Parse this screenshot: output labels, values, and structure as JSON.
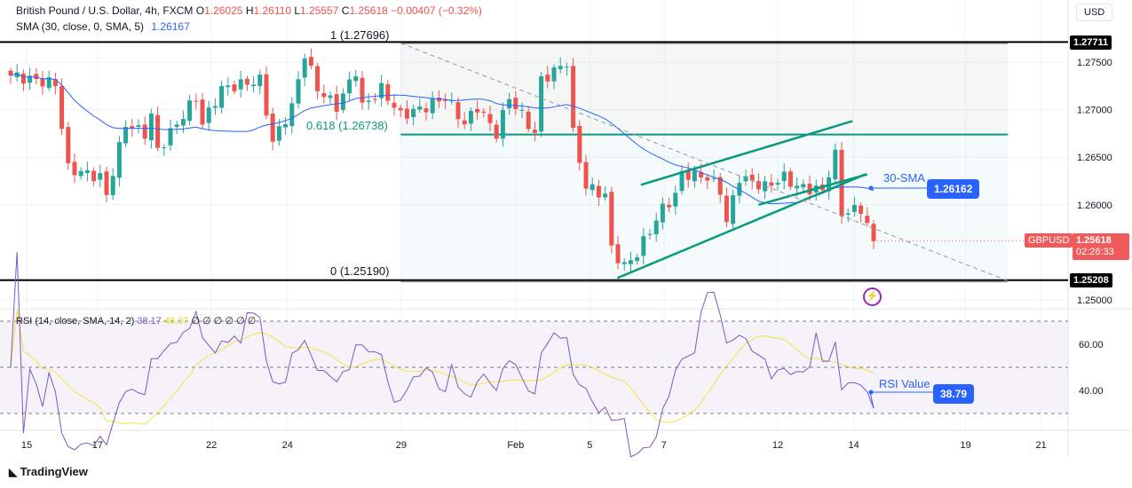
{
  "header": {
    "symbol": "British Pound / U.S. Dollar, 4h, FXCM",
    "o_label": "O",
    "o": "1.26025",
    "h_label": "H",
    "h": "1.26110",
    "l_label": "L",
    "l": "1.25557",
    "c_label": "C",
    "c": "1.25618",
    "change": "−0.00407 (−0.32%)"
  },
  "sma_legend": {
    "label": "SMA (30, close, 0, SMA, 5)",
    "value": "1.26167"
  },
  "rsi_legend": {
    "label": "RSI (14, close, SMA, 14, 2)",
    "rsi": "38.17",
    "sma": "48.07",
    "zeros": "∅ ∅ ∅ ∅ ∅ ∅"
  },
  "currency": "USD",
  "annotations": {
    "sma_label": "30-SMA",
    "sma_value": "1.26162",
    "rsi_label": "RSI Value",
    "rsi_value": "38.79",
    "fib_1": "1 (1.27696)",
    "fib_618": "0.618 (1.26738)",
    "fib_0": "0 (1.25190)"
  },
  "badges": {
    "top_level": "1.27711",
    "bottom_level": "1.25208",
    "symbol": "GBPUSD",
    "price": "1.25618",
    "countdown": "02:26:33"
  },
  "footer": {
    "logo": "TradingView"
  },
  "colors": {
    "up": "#26a69a",
    "down": "#ef5350",
    "sma": "#2962ff",
    "rsi": "#7e57c2",
    "rsi_sma": "#f5e342",
    "accent": "#2962ff"
  },
  "chart_data": {
    "type": "candlestick",
    "price_range": [
      1.248,
      1.279
    ],
    "y_ticks": [
      "1.27500",
      "1.27000",
      "1.26500",
      "1.26000",
      "1.25000"
    ],
    "y_tick_values": [
      1.275,
      1.27,
      1.265,
      1.26,
      1.25
    ],
    "x_ticks": [
      {
        "bar": 2.5,
        "label": "15"
      },
      {
        "bar": 13.6,
        "label": "17"
      },
      {
        "bar": 31.4,
        "label": "22"
      },
      {
        "bar": 43.3,
        "label": "24"
      },
      {
        "bar": 61.1,
        "label": "29"
      },
      {
        "bar": 79,
        "label": "Feb"
      },
      {
        "bar": 90.6,
        "label": "5"
      },
      {
        "bar": 102.2,
        "label": "7"
      },
      {
        "bar": 120,
        "label": "12"
      },
      {
        "bar": 131.9,
        "label": "14"
      },
      {
        "bar": 149.4,
        "label": "19"
      },
      {
        "bar": 161.2,
        "label": "21"
      }
    ],
    "close_path": [
      [
        0,
        1.2736
      ],
      [
        7,
        1.2727
      ],
      [
        9,
        1.2638
      ],
      [
        14,
        1.2629
      ],
      [
        15,
        1.261
      ],
      [
        18,
        1.2685
      ],
      [
        21,
        1.2675
      ],
      [
        22,
        1.2694
      ],
      [
        23,
        1.2657
      ],
      [
        29,
        1.2713
      ],
      [
        30,
        1.2685
      ],
      [
        33,
        1.2722
      ],
      [
        39,
        1.2731
      ],
      [
        41,
        1.2666
      ],
      [
        44,
        1.2703
      ],
      [
        46,
        1.2759
      ],
      [
        48,
        1.2722
      ],
      [
        51,
        1.2703
      ],
      [
        54,
        1.2741
      ],
      [
        55,
        1.2703
      ],
      [
        58,
        1.2722
      ],
      [
        61,
        1.2694
      ],
      [
        65,
        1.2703
      ],
      [
        68,
        1.2713
      ],
      [
        71,
        1.2685
      ],
      [
        73,
        1.2703
      ],
      [
        76,
        1.2675
      ],
      [
        78,
        1.2713
      ],
      [
        82,
        1.2675
      ],
      [
        83,
        1.2731
      ],
      [
        87,
        1.275
      ],
      [
        88,
        1.2675
      ],
      [
        90,
        1.2619
      ],
      [
        93,
        1.261
      ],
      [
        94,
        1.2554
      ],
      [
        96,
        1.2535
      ],
      [
        98,
        1.2549
      ],
      [
        100,
        1.2573
      ],
      [
        102,
        1.2596
      ],
      [
        104,
        1.261
      ],
      [
        105,
        1.2633
      ],
      [
        109,
        1.2629
      ],
      [
        111,
        1.2615
      ],
      [
        112,
        1.2582
      ],
      [
        114,
        1.2629
      ],
      [
        118,
        1.2619
      ],
      [
        121,
        1.2629
      ],
      [
        123,
        1.2619
      ],
      [
        127,
        1.2615
      ],
      [
        129,
        1.2652
      ],
      [
        130,
        1.2591
      ],
      [
        133,
        1.2596
      ],
      [
        135,
        1.2562
      ]
    ],
    "levels": [
      1.27711,
      1.25208,
      1.26738
    ],
    "fib": {
      "from_bar": 61,
      "to_bar": 156,
      "high": 1.27696,
      "low": 1.2519
    },
    "trendlines": [
      {
        "name": "channel-lower",
        "p": [
          [
            94.9,
            1.2523
          ],
          [
            133.7,
            1.2632
          ]
        ]
      },
      {
        "name": "channel-upper",
        "p": [
          [
            98.6,
            1.2621
          ],
          [
            131.7,
            1.2688
          ]
        ]
      },
      {
        "name": "channel-mid",
        "p": [
          [
            117,
            1.26
          ],
          [
            134,
            1.2632
          ]
        ]
      },
      {
        "name": "downtrend-dashed",
        "p": [
          [
            61,
            1.277
          ],
          [
            156,
            1.252
          ]
        ]
      }
    ],
    "rsi_range": [
      20,
      80
    ],
    "rsi_levels": [
      70,
      50,
      30
    ],
    "rsi_ticks": [
      "60.00",
      "40.00"
    ],
    "rsi_tick_values": [
      60,
      40
    ]
  }
}
